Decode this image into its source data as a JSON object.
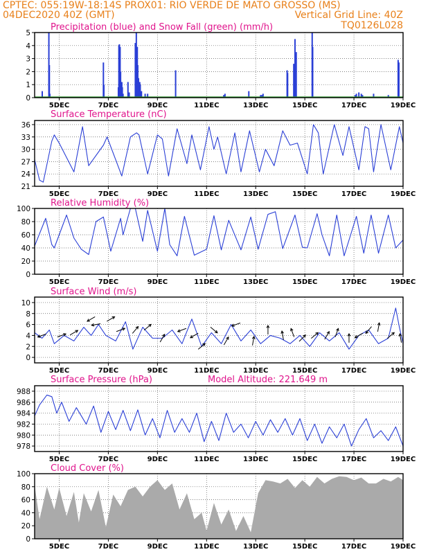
{
  "header": {
    "line1_left": "CPTEC:   055:19W-18:14S   PROX01: RIO VERDE DE MATO GROSSO (MS)",
    "line2_left": "04DEC2020 40Z (GMT)",
    "line2_right": "Vertical Grid Line: 40Z",
    "line3_right": "TQ0126L028"
  },
  "colors": {
    "header": "#e8801a",
    "title": "#e0148c",
    "series": "#2a3fd6",
    "snow": "#2a9a2a",
    "cloud": "#aaaaaa",
    "wind_arrow": "#000000",
    "grid": "#555555"
  },
  "xaxis": {
    "tick_labels": [
      "5DEC",
      "7DEC",
      "9DEC",
      "11DEC",
      "13DEC",
      "15DEC",
      "17DEC",
      "19DEC"
    ],
    "tick_days": [
      1,
      3,
      5,
      7,
      9,
      11,
      13,
      15
    ],
    "range_days": [
      0,
      15
    ]
  },
  "chart_data": [
    {
      "id": "precip",
      "type": "bar",
      "title": "Precipitation (blue) and Snow Fall (green) (mm/h)",
      "ylim": [
        0,
        5
      ],
      "yticks": [
        0,
        1,
        2,
        3,
        4,
        5
      ],
      "series": [
        {
          "name": "Precipitation",
          "color": "#2a3fd6",
          "x": [
            0.31,
            0.58,
            0.6,
            0.62,
            2.8,
            2.82,
            3.41,
            3.43,
            3.45,
            3.48,
            3.5,
            3.52,
            3.55,
            3.57,
            3.6,
            3.8,
            3.85,
            4.1,
            4.14,
            4.18,
            4.2,
            4.23,
            4.25,
            4.28,
            4.3,
            4.35,
            4.5,
            4.6,
            5.74,
            7.7,
            7.75,
            8.72,
            9.2,
            9.25,
            9.3,
            10.28,
            10.3,
            10.55,
            10.6,
            10.65,
            11.3,
            11.32,
            13.05,
            13.1,
            13.2,
            13.3,
            13.35,
            13.8,
            14.4,
            14.8,
            14.83
          ],
          "y": [
            0.5,
            5.0,
            2.5,
            0.3,
            2.7,
            1.0,
            0.8,
            4.0,
            4.1,
            3.9,
            2.0,
            0.5,
            1.2,
            0.8,
            0.3,
            1.2,
            0.4,
            4.2,
            5.0,
            3.9,
            2.5,
            1.5,
            0.8,
            1.2,
            1.0,
            0.5,
            0.3,
            0.3,
            2.1,
            0.2,
            0.3,
            0.5,
            0.2,
            0.2,
            0.3,
            2.1,
            1.9,
            2.6,
            4.5,
            3.5,
            5.0,
            3.9,
            0.2,
            0.3,
            0.4,
            0.3,
            0.2,
            0.3,
            0.2,
            2.9,
            2.7
          ]
        },
        {
          "name": "Snow Fall",
          "color": "#2a9a2a",
          "x": [
            0,
            15
          ],
          "y": [
            0,
            0
          ]
        }
      ]
    },
    {
      "id": "temp",
      "type": "line",
      "title": "Surface Temperature (nC)",
      "ylim": [
        21,
        37
      ],
      "yticks": [
        21,
        24,
        27,
        30,
        33,
        36
      ],
      "series": [
        {
          "name": "",
          "color": "#2a3fd6",
          "x": [
            0,
            0.2,
            0.35,
            0.7,
            0.8,
            1.0,
            1.6,
            1.95,
            2.2,
            2.8,
            2.95,
            3.55,
            3.9,
            4.15,
            4.25,
            4.6,
            5.0,
            5.2,
            5.45,
            5.8,
            6.2,
            6.4,
            6.75,
            7.1,
            7.3,
            7.45,
            7.8,
            8.15,
            8.4,
            8.75,
            9.15,
            9.4,
            9.75,
            10.1,
            10.4,
            10.7,
            11.1,
            11.35,
            11.55,
            11.75,
            12.2,
            12.55,
            12.8,
            13.2,
            13.45,
            13.6,
            13.8,
            14.1,
            14.5,
            14.85,
            15.0
          ],
          "y": [
            27.5,
            22.5,
            22.0,
            32.0,
            33.5,
            31.5,
            24.5,
            35.5,
            26.0,
            31.0,
            33.0,
            23.5,
            33.0,
            34.0,
            33.5,
            24.0,
            33.5,
            32.5,
            23.5,
            35.0,
            26.5,
            33.5,
            25.0,
            35.5,
            30.0,
            33.0,
            24.0,
            34.0,
            24.5,
            34.5,
            24.5,
            30.0,
            26.0,
            34.5,
            31.0,
            31.5,
            24.0,
            36.0,
            34.0,
            24.0,
            36.0,
            28.5,
            35.5,
            25.0,
            35.5,
            35.0,
            24.5,
            36.0,
            25.0,
            35.5,
            31.5
          ]
        }
      ]
    },
    {
      "id": "rh",
      "type": "line",
      "title": "Relative Humidity (%)",
      "ylim": [
        0,
        100
      ],
      "yticks": [
        0,
        20,
        40,
        60,
        80,
        100
      ],
      "series": [
        {
          "name": "",
          "color": "#2a3fd6",
          "x": [
            0,
            0.45,
            0.7,
            0.8,
            1.3,
            1.6,
            1.9,
            2.2,
            2.5,
            2.8,
            3.1,
            3.5,
            3.6,
            3.9,
            4.1,
            4.4,
            4.6,
            5.0,
            5.3,
            5.5,
            5.8,
            6.1,
            6.5,
            7.0,
            7.3,
            7.6,
            7.9,
            8.4,
            8.8,
            9.1,
            9.5,
            9.8,
            10.1,
            10.6,
            10.9,
            11.1,
            11.5,
            11.7,
            12.0,
            12.3,
            12.6,
            13.1,
            13.4,
            13.7,
            14.0,
            14.4,
            14.7,
            15.0
          ],
          "y": [
            43,
            85,
            45,
            40,
            90,
            55,
            38,
            30,
            80,
            87,
            35,
            85,
            60,
            100,
            100,
            50,
            97,
            35,
            100,
            45,
            28,
            88,
            29,
            38,
            89,
            37,
            82,
            37,
            87,
            38,
            91,
            95,
            39,
            90,
            41,
            40,
            92,
            60,
            28,
            90,
            28,
            88,
            32,
            90,
            32,
            90,
            40,
            52
          ]
        }
      ]
    },
    {
      "id": "wind",
      "type": "line",
      "title": "Surface Wind (m/s)",
      "ylim": [
        -1,
        11
      ],
      "yticks": [
        0,
        2,
        4,
        6,
        8,
        10
      ],
      "series": [
        {
          "name": "",
          "color": "#2a3fd6",
          "x": [
            0,
            0.3,
            0.6,
            0.8,
            1.2,
            1.6,
            2.0,
            2.3,
            2.6,
            2.9,
            3.3,
            3.7,
            4.0,
            4.4,
            4.8,
            5.2,
            5.6,
            6.0,
            6.4,
            6.8,
            7.2,
            7.6,
            8.0,
            8.4,
            8.8,
            9.2,
            9.6,
            10.0,
            10.4,
            10.8,
            11.2,
            11.6,
            12.0,
            12.4,
            12.8,
            13.2,
            13.6,
            14.0,
            14.4,
            14.7,
            14.85,
            15.0
          ],
          "y": [
            4.5,
            3.5,
            5.0,
            2.5,
            4.0,
            3.0,
            5.5,
            4.0,
            6.0,
            4.0,
            3.0,
            6.5,
            1.5,
            5.5,
            3.5,
            3.5,
            5.0,
            2.5,
            7.0,
            2.0,
            4.5,
            2.5,
            6.0,
            3.0,
            5.0,
            2.5,
            4.0,
            3.5,
            2.5,
            4.0,
            2.0,
            4.5,
            3.0,
            4.5,
            1.5,
            4.0,
            5.0,
            2.5,
            3.5,
            9.0,
            5.5,
            2.5
          ]
        }
      ],
      "arrows": {
        "x": [
          0.3,
          1.1,
          1.6,
          2.3,
          2.5,
          3.1,
          3.5,
          4.1,
          4.6,
          5.2,
          6.0,
          6.5,
          6.8,
          7.3,
          7.8,
          8.2,
          8.9,
          9.5,
          10.1,
          10.5,
          10.9,
          11.4,
          11.9,
          12.3,
          12.8,
          13.2,
          13.6,
          14.0,
          14.5,
          14.9
        ],
        "speed": [
          4.0,
          4.0,
          4.5,
          7.0,
          6.0,
          7.0,
          5.0,
          5.0,
          5.5,
          3.5,
          5.0,
          4.0,
          2.0,
          5.0,
          3.0,
          6.0,
          3.0,
          5.0,
          4.0,
          4.5,
          3.5,
          4.0,
          4.0,
          4.5,
          3.5,
          4.0,
          5.0,
          5.5,
          4.0,
          3.5
        ],
        "dir_deg": [
          200,
          20,
          30,
          210,
          190,
          30,
          20,
          50,
          40,
          60,
          200,
          210,
          40,
          320,
          60,
          200,
          80,
          90,
          100,
          110,
          45,
          40,
          60,
          70,
          90,
          210,
          230,
          80,
          40,
          100
        ]
      }
    },
    {
      "id": "pressure",
      "type": "line",
      "title": "Surface Pressure (hPa)",
      "annotation": "Model Altitude: 221.649 m",
      "ylim": [
        977,
        989
      ],
      "yticks": [
        978,
        980,
        982,
        984,
        986,
        988
      ],
      "series": [
        {
          "name": "",
          "color": "#2a3fd6",
          "x": [
            0,
            0.2,
            0.5,
            0.7,
            0.9,
            1.1,
            1.4,
            1.7,
            2.1,
            2.4,
            2.7,
            3.0,
            3.3,
            3.6,
            3.9,
            4.2,
            4.5,
            4.8,
            5.1,
            5.4,
            5.7,
            6.0,
            6.3,
            6.6,
            6.9,
            7.2,
            7.5,
            7.8,
            8.1,
            8.4,
            8.7,
            9.0,
            9.3,
            9.6,
            9.9,
            10.2,
            10.5,
            10.8,
            11.1,
            11.4,
            11.7,
            12.0,
            12.3,
            12.6,
            12.9,
            13.2,
            13.5,
            13.8,
            14.1,
            14.4,
            14.7,
            15.0
          ],
          "y": [
            983.5,
            985.5,
            987.3,
            987.0,
            984.0,
            986.0,
            982.5,
            985.0,
            982.0,
            985.3,
            980.5,
            984.3,
            981.0,
            984.5,
            980.8,
            984.6,
            980.0,
            983.0,
            979.5,
            984.5,
            980.5,
            983.0,
            980.5,
            984.0,
            978.8,
            982.5,
            979.0,
            984.0,
            980.5,
            982.0,
            979.5,
            982.5,
            980.0,
            982.8,
            980.5,
            983.0,
            980.0,
            983.0,
            979.0,
            982.0,
            978.5,
            981.5,
            979.5,
            982.0,
            978.0,
            981.0,
            983.0,
            979.5,
            980.8,
            979.0,
            981.5,
            978.0
          ]
        }
      ]
    },
    {
      "id": "cloud",
      "type": "area",
      "title": "Cloud Cover (%)",
      "ylim": [
        0,
        100
      ],
      "yticks": [
        0,
        20,
        40,
        60,
        80,
        100
      ],
      "series": [
        {
          "name": "",
          "color": "#aaaaaa",
          "x": [
            0,
            0.2,
            0.5,
            0.8,
            1.0,
            1.3,
            1.6,
            1.8,
            2.0,
            2.3,
            2.6,
            2.9,
            3.2,
            3.5,
            3.8,
            4.1,
            4.4,
            4.7,
            5.0,
            5.3,
            5.6,
            5.9,
            6.2,
            6.5,
            6.8,
            7.0,
            7.3,
            7.6,
            7.9,
            8.2,
            8.5,
            8.8,
            9.1,
            9.4,
            9.7,
            10.0,
            10.3,
            10.6,
            10.9,
            11.2,
            11.5,
            11.8,
            12.1,
            12.4,
            12.7,
            13.0,
            13.3,
            13.6,
            13.9,
            14.2,
            14.5,
            14.8,
            15.0
          ],
          "y": [
            82,
            30,
            80,
            45,
            78,
            35,
            72,
            25,
            70,
            42,
            75,
            18,
            68,
            50,
            75,
            80,
            65,
            80,
            90,
            75,
            85,
            45,
            70,
            30,
            40,
            12,
            55,
            22,
            45,
            12,
            35,
            10,
            70,
            90,
            88,
            85,
            92,
            78,
            90,
            80,
            95,
            85,
            92,
            96,
            95,
            90,
            94,
            85,
            85,
            92,
            88,
            95,
            90
          ]
        }
      ]
    }
  ]
}
